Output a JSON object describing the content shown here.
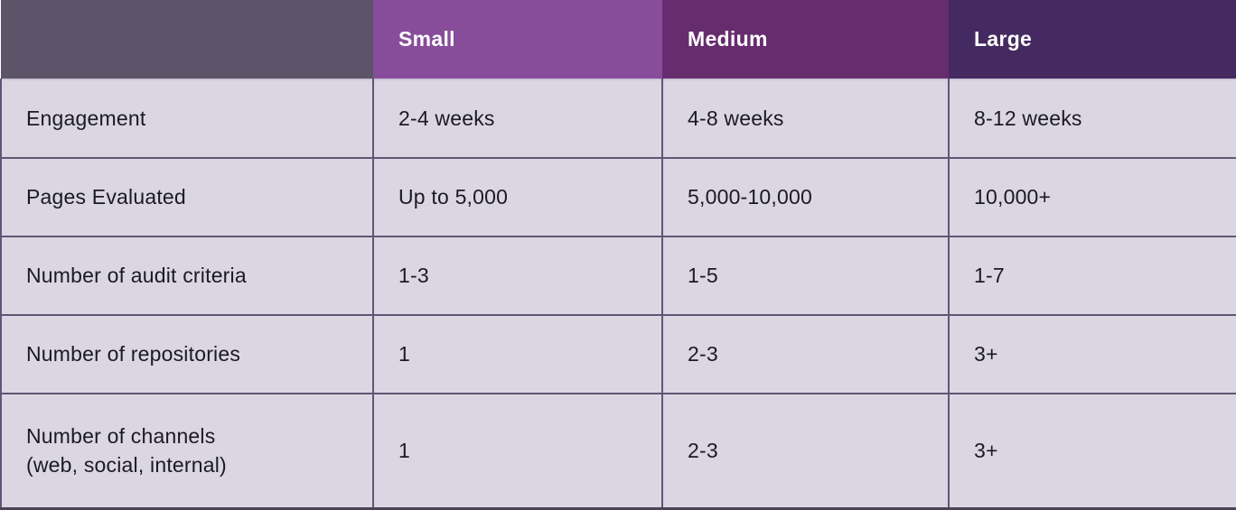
{
  "table": {
    "title": "engagement-sizing-matrix",
    "colors": {
      "header_blank_bg": "#5D5469",
      "header_small_bg": "#874D9B",
      "header_medium_bg": "#672C6E",
      "header_large_bg": "#452A61",
      "body_cell_bg": "#DAD7E2",
      "grid_border": "#5E5776",
      "header_text": "#ffffff",
      "body_text": "#1C1926"
    },
    "columns": [
      {
        "label": ""
      },
      {
        "label": "Small"
      },
      {
        "label": "Medium"
      },
      {
        "label": "Large"
      }
    ],
    "rows": [
      {
        "label": "Engagement",
        "values": [
          "2-4 weeks",
          "4-8 weeks",
          "8-12 weeks"
        ]
      },
      {
        "label": "Pages Evaluated",
        "values": [
          "Up to 5,000",
          "5,000-10,000",
          "10,000+"
        ]
      },
      {
        "label": "Number of audit criteria",
        "values": [
          "1-3",
          "1-5",
          "1-7"
        ]
      },
      {
        "label": "Number of repositories",
        "values": [
          "1",
          "2-3",
          "3+"
        ]
      },
      {
        "label": "Number of channels\n(web, social, internal)",
        "values": [
          "1",
          "2-3",
          "3+"
        ]
      }
    ]
  }
}
